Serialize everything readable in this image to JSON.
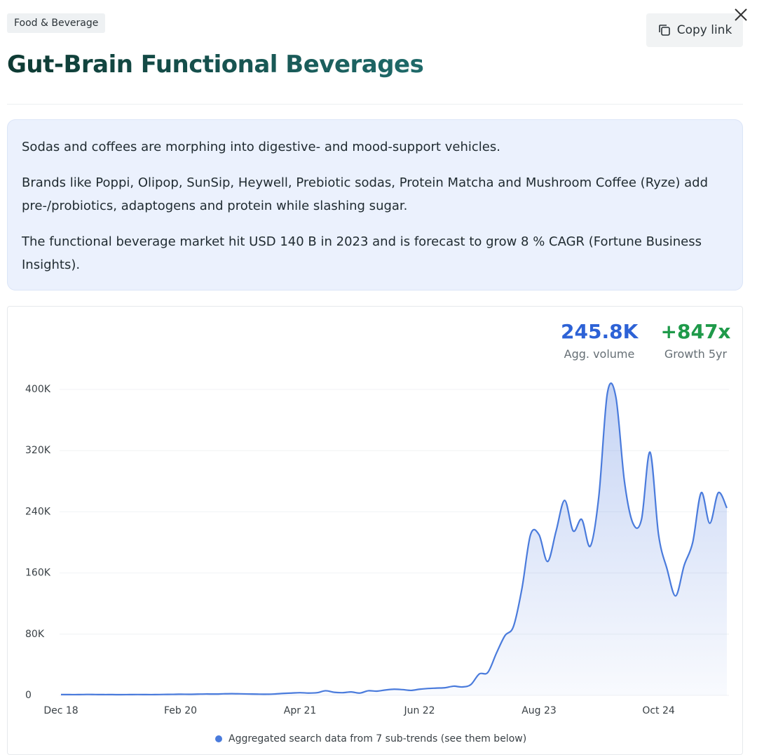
{
  "tag": "Food & Beverage",
  "title": "Gut-Brain Functional Beverages",
  "copy_button": "Copy link",
  "description": [
    "Sodas and coffees are morphing into digestive- and mood-support vehicles.",
    "Brands like Poppi, Olipop, SunSip, Heywell, Prebiotic sodas, Protein Matcha and Mushroom Coffee (Ryze) add pre-/probiotics, adaptogens and protein while slashing sugar.",
    "The functional beverage market hit USD 140 B in 2023 and is forecast to grow 8 % CAGR (Fortune Business Insights)."
  ],
  "stats": [
    {
      "value": "245.8K",
      "label": "Agg. volume"
    },
    {
      "value": "+847x",
      "label": "Growth 5yr"
    }
  ],
  "chart_data": {
    "type": "area",
    "categories": [
      "Dec 18",
      null,
      null,
      null,
      null,
      null,
      null,
      null,
      null,
      null,
      null,
      null,
      null,
      null,
      "Feb 20",
      null,
      null,
      null,
      null,
      null,
      null,
      null,
      null,
      null,
      null,
      null,
      null,
      null,
      "Apr 21",
      null,
      null,
      null,
      null,
      null,
      null,
      null,
      null,
      null,
      null,
      null,
      null,
      null,
      "Jun 22",
      null,
      null,
      null,
      null,
      null,
      null,
      null,
      null,
      null,
      null,
      null,
      null,
      null,
      "Aug 23",
      null,
      null,
      null,
      null,
      null,
      null,
      null,
      null,
      null,
      null,
      null,
      null,
      null,
      "Oct 24",
      null,
      null,
      null,
      null,
      null,
      null,
      null,
      null
    ],
    "series": [
      {
        "name": "Aggregated search data from 7 sub-trends (see them below)",
        "color": "#4a7bdc",
        "values": [
          1000,
          1000,
          1000,
          1200,
          1100,
          1000,
          1000,
          900,
          1000,
          1100,
          1000,
          1000,
          1200,
          1300,
          1500,
          1400,
          1600,
          1800,
          1700,
          2000,
          2200,
          2000,
          1800,
          1600,
          1500,
          1800,
          2500,
          3000,
          3500,
          3000,
          3500,
          6000,
          4000,
          3500,
          4500,
          3000,
          6000,
          5500,
          7000,
          8000,
          7500,
          6500,
          8000,
          9000,
          9500,
          10000,
          12000,
          11000,
          14000,
          28000,
          30000,
          55000,
          78000,
          90000,
          140000,
          210000,
          210000,
          175000,
          215000,
          255000,
          215000,
          230000,
          195000,
          260000,
          395000,
          390000,
          280000,
          225000,
          230000,
          318000,
          210000,
          165000,
          130000,
          170000,
          200000,
          265000,
          225000,
          265000,
          245000
        ]
      }
    ],
    "ylim": [
      0,
      400000
    ],
    "yticks": [
      0,
      {
        "value": 80000,
        "label": "80K"
      },
      {
        "value": 160000,
        "label": "160K"
      },
      {
        "value": 240000,
        "label": "240K"
      },
      {
        "value": 320000,
        "label": "320K"
      },
      {
        "value": 400000,
        "label": "400K"
      }
    ],
    "grid": true
  }
}
